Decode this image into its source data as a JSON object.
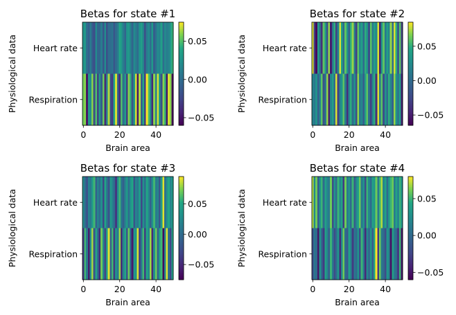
{
  "chart_data": [
    {
      "type": "heatmap",
      "title": "Betas for state #1",
      "xlabel": "Brain area",
      "ylabel": "Physiological data",
      "rows": [
        "Heart rate",
        "Respiration"
      ],
      "x_ticks": [
        "0",
        "20",
        "40"
      ],
      "xlim": [
        -0.5,
        49.5
      ],
      "colorbar": {
        "colormap": "viridis",
        "vmin": -0.06,
        "vmax": 0.075,
        "ticks": [
          0.05,
          0.0,
          -0.05
        ],
        "tick_labels": [
          "0.05",
          "0.00",
          "−0.05"
        ]
      },
      "values": [
        [
          0.025,
          0.03,
          0.0,
          -0.01,
          0.01,
          -0.01,
          -0.02,
          0.02,
          -0.005,
          -0.005,
          0.01,
          -0.015,
          0.02,
          -0.02,
          0.0,
          0.0,
          0.005,
          -0.015,
          0.0,
          0.01,
          0.04,
          0.03,
          0.01,
          -0.005,
          0.025,
          0.03,
          0.015,
          -0.005,
          0.02,
          0.01,
          0.0,
          0.025,
          0.035,
          0.015,
          -0.02,
          0.01,
          0.02,
          0.0,
          0.03,
          -0.01,
          0.005,
          0.02,
          0.015,
          0.035,
          0.0,
          0.02,
          0.01,
          0.015,
          0.03,
          0.045
        ],
        [
          0.055,
          0.06,
          -0.05,
          0.03,
          0.02,
          0.06,
          -0.02,
          0.05,
          -0.03,
          0.03,
          -0.01,
          0.055,
          -0.04,
          0.01,
          0.065,
          -0.02,
          -0.03,
          0.04,
          0.07,
          -0.01,
          -0.04,
          0.05,
          0.0,
          0.03,
          -0.03,
          0.06,
          0.045,
          -0.015,
          0.03,
          0.07,
          -0.05,
          0.065,
          -0.01,
          0.04,
          -0.03,
          0.075,
          0.05,
          0.02,
          -0.04,
          0.06,
          0.01,
          0.07,
          0.03,
          -0.02,
          0.06,
          0.045,
          -0.05,
          0.07,
          0.06,
          -0.055
        ]
      ]
    },
    {
      "type": "heatmap",
      "title": "Betas for state #2",
      "xlabel": "Brain area",
      "ylabel": "Physiological data",
      "rows": [
        "Heart rate",
        "Respiration"
      ],
      "x_ticks": [
        "0",
        "20",
        "40"
      ],
      "xlim": [
        -0.5,
        49.5
      ],
      "colorbar": {
        "colormap": "viridis",
        "vmin": -0.065,
        "vmax": 0.085,
        "ticks": [
          0.05,
          0.0,
          -0.05
        ],
        "tick_labels": [
          "0.05",
          "0.00",
          "−0.05"
        ]
      },
      "values": [
        [
          0.08,
          -0.03,
          -0.06,
          0.04,
          0.0,
          -0.04,
          0.06,
          0.03,
          -0.02,
          0.07,
          -0.05,
          0.01,
          0.05,
          -0.03,
          0.02,
          0.08,
          0.04,
          0.0,
          0.06,
          0.03,
          -0.01,
          0.05,
          0.07,
          0.01,
          -0.03,
          0.06,
          0.02,
          0.04,
          0.0,
          0.05,
          0.03,
          -0.02,
          0.06,
          0.01,
          0.04,
          0.02,
          0.08,
          -0.05,
          0.03,
          0.06,
          0.01,
          0.04,
          0.02,
          0.07,
          0.0,
          0.08,
          0.05,
          -0.01,
          0.06,
          -0.03
        ],
        [
          0.02,
          0.01,
          0.03,
          -0.01,
          0.02,
          0.06,
          -0.02,
          0.01,
          0.07,
          -0.05,
          0.02,
          0.04,
          0.0,
          0.08,
          -0.03,
          0.02,
          0.03,
          0.06,
          0.01,
          -0.04,
          0.02,
          0.05,
          0.0,
          0.03,
          -0.02,
          0.07,
          0.01,
          0.02,
          -0.01,
          0.04,
          0.06,
          0.0,
          -0.03,
          0.02,
          0.05,
          -0.04,
          0.08,
          0.01,
          0.06,
          -0.02,
          0.03,
          0.0,
          0.05,
          0.02,
          -0.01,
          0.07,
          0.03,
          0.01,
          0.04,
          -0.05
        ]
      ]
    },
    {
      "type": "heatmap",
      "title": "Betas for state #3",
      "xlabel": "Brain area",
      "ylabel": "Physiological data",
      "rows": [
        "Heart rate",
        "Respiration"
      ],
      "x_ticks": [
        "0",
        "20",
        "40"
      ],
      "xlim": [
        -0.5,
        49.5
      ],
      "colorbar": {
        "colormap": "viridis",
        "vmin": -0.075,
        "vmax": 0.095,
        "ticks": [
          0.05,
          0.0,
          -0.05
        ],
        "tick_labels": [
          "0.05",
          "0.00",
          "−0.05"
        ]
      },
      "values": [
        [
          0.03,
          0.0,
          -0.02,
          0.02,
          0.01,
          0.04,
          0.06,
          -0.01,
          0.02,
          0.0,
          0.03,
          -0.03,
          0.05,
          0.01,
          -0.02,
          0.04,
          0.02,
          0.0,
          -0.04,
          0.03,
          0.06,
          0.01,
          -0.01,
          0.02,
          0.04,
          0.0,
          0.03,
          0.05,
          -0.02,
          0.02,
          0.01,
          0.04,
          -0.03,
          0.03,
          0.0,
          0.05,
          0.02,
          -0.01,
          0.03,
          0.06,
          0.01,
          0.02,
          -0.02,
          0.04,
          0.09,
          0.0,
          0.03,
          0.05,
          0.02,
          0.04
        ],
        [
          -0.04,
          0.06,
          0.01,
          -0.06,
          0.03,
          0.08,
          -0.02,
          0.05,
          0.0,
          -0.05,
          0.07,
          0.02,
          -0.03,
          0.04,
          0.09,
          -0.01,
          0.06,
          -0.04,
          0.03,
          0.01,
          0.08,
          -0.05,
          0.02,
          0.05,
          -0.02,
          0.07,
          0.0,
          -0.06,
          0.04,
          0.03,
          0.09,
          -0.03,
          0.01,
          0.06,
          -0.04,
          0.05,
          0.02,
          0.08,
          -0.05,
          0.03,
          0.07,
          -0.01,
          0.04,
          0.06,
          -0.07,
          0.02,
          0.09,
          0.0,
          -0.03,
          0.05
        ]
      ]
    },
    {
      "type": "heatmap",
      "title": "Betas for state #4",
      "xlabel": "Brain area",
      "ylabel": "Physiological data",
      "rows": [
        "Heart rate",
        "Respiration"
      ],
      "x_ticks": [
        "0",
        "20",
        "40"
      ],
      "xlim": [
        -0.5,
        49.5
      ],
      "colorbar": {
        "colormap": "viridis",
        "vmin": -0.06,
        "vmax": 0.08,
        "ticks": [
          0.05,
          0.0,
          -0.05
        ],
        "tick_labels": [
          "0.05",
          "0.00",
          "−0.05"
        ]
      },
      "values": [
        [
          0.07,
          0.02,
          0.06,
          -0.01,
          0.03,
          0.05,
          0.0,
          0.04,
          0.02,
          0.01,
          0.06,
          -0.02,
          0.03,
          0.0,
          0.05,
          0.02,
          0.04,
          -0.03,
          0.06,
          0.01,
          0.03,
          0.0,
          0.05,
          -0.01,
          0.02,
          0.04,
          0.06,
          0.01,
          0.03,
          -0.02,
          0.05,
          0.02,
          0.0,
          0.04,
          0.03,
          0.06,
          0.01,
          0.05,
          0.07,
          0.02,
          0.04,
          0.0,
          0.03,
          0.05,
          0.06,
          0.01,
          0.04,
          0.02,
          0.05,
          0.03
        ],
        [
          -0.02,
          0.01,
          0.0,
          -0.05,
          0.03,
          0.0,
          -0.03,
          0.04,
          0.02,
          -0.01,
          0.05,
          0.01,
          -0.02,
          0.0,
          0.03,
          -0.04,
          0.02,
          0.06,
          0.0,
          -0.01,
          0.04,
          0.02,
          -0.03,
          0.01,
          0.0,
          0.03,
          -0.02,
          0.05,
          0.01,
          -0.04,
          0.02,
          0.0,
          0.03,
          -0.01,
          0.04,
          0.08,
          -0.03,
          0.06,
          0.01,
          0.0,
          -0.02,
          0.03,
          0.02,
          -0.05,
          0.04,
          0.01,
          0.0,
          -0.03,
          0.05,
          -0.05
        ]
      ]
    }
  ]
}
